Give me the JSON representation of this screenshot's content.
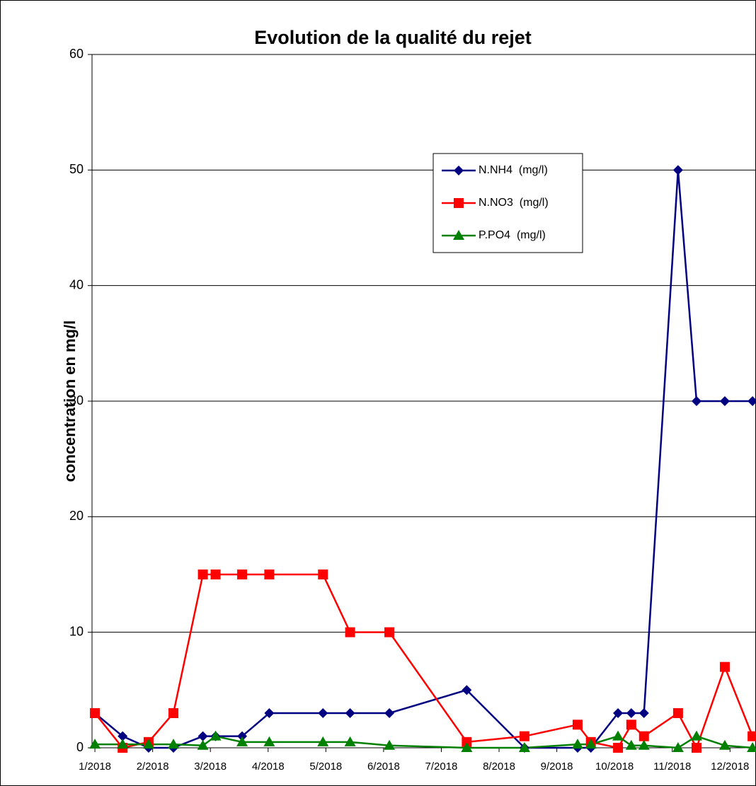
{
  "chart_data": {
    "type": "line",
    "title": "Evolution de la qualité du rejet",
    "y_label": "concentration en mg/l",
    "x": [
      1.0,
      1.48,
      1.93,
      2.36,
      2.87,
      3.09,
      3.55,
      4.02,
      4.95,
      5.42,
      6.1,
      7.44,
      8.44,
      9.36,
      9.59,
      10.06,
      10.29,
      10.51,
      11.1,
      11.42,
      11.91,
      12.39
    ],
    "xlim": [
      0.95,
      12.45
    ],
    "xticks": [
      {
        "value": 1,
        "label": "1/2018"
      },
      {
        "value": 2,
        "label": "2/2018"
      },
      {
        "value": 3,
        "label": "3/2018"
      },
      {
        "value": 4,
        "label": "4/2018"
      },
      {
        "value": 5,
        "label": "5/2018"
      },
      {
        "value": 6,
        "label": "6/2018"
      },
      {
        "value": 7,
        "label": "7/2018"
      },
      {
        "value": 8,
        "label": "8/2018"
      },
      {
        "value": 9,
        "label": "9/2018"
      },
      {
        "value": 10,
        "label": "10/2018"
      },
      {
        "value": 11,
        "label": "11/2018"
      },
      {
        "value": 12,
        "label": "12/2018"
      }
    ],
    "ylim": [
      0,
      60
    ],
    "yticks": [
      0,
      10,
      20,
      30,
      40,
      50,
      60
    ],
    "grid": true,
    "legend": "upper right",
    "series": [
      {
        "name": "N.NH4  (mg/l)",
        "color": "#000080",
        "marker": "diamond",
        "values": [
          3,
          1,
          0,
          0,
          1,
          1,
          1,
          3,
          3,
          3,
          3,
          5,
          0,
          0,
          0,
          3,
          3,
          3,
          50,
          30,
          30,
          30
        ]
      },
      {
        "name": "N.NO3  (mg/l)",
        "color": "#ff0000",
        "marker": "square",
        "values": [
          3,
          0,
          0.5,
          3,
          15,
          15,
          15,
          15,
          15,
          10,
          10,
          0.5,
          1,
          2,
          0.5,
          0,
          2,
          1,
          3,
          0,
          7,
          1
        ]
      },
      {
        "name": "P.PO4  (mg/l)",
        "color": "#008000",
        "marker": "triangle",
        "values": [
          0.3,
          0.3,
          0.3,
          0.3,
          0.2,
          1,
          0.5,
          0.5,
          0.5,
          0.5,
          0.2,
          0,
          0,
          0.3,
          0.3,
          1,
          0.2,
          0.2,
          0,
          1,
          0.2,
          0
        ]
      }
    ]
  }
}
